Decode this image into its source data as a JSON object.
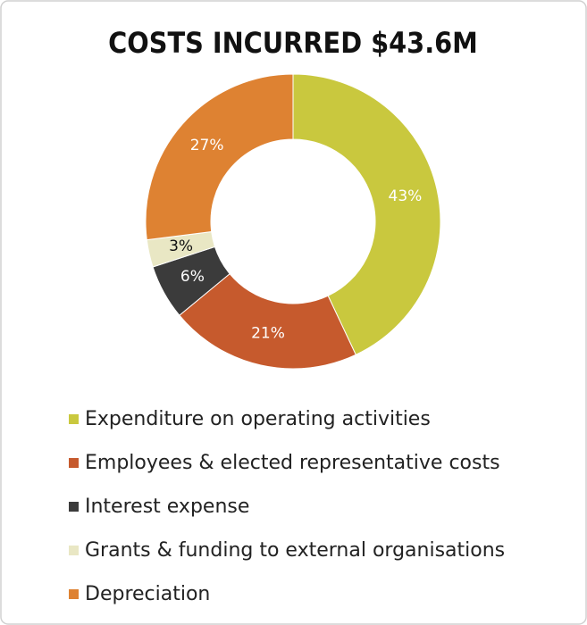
{
  "chart_data": {
    "type": "donut",
    "title": "COSTS INCURRED $43.6M",
    "categories": [
      "Expenditure on operating activities",
      "Employees & elected representative costs",
      "Interest expense",
      "Grants & funding to external organisations",
      "Depreciation"
    ],
    "values": [
      43,
      21,
      6,
      3,
      27
    ],
    "value_labels": [
      "43%",
      "21%",
      "6%",
      "3%",
      "27%"
    ],
    "colors": [
      "#c9c83e",
      "#c65a2d",
      "#3b3b3b",
      "#e9e7c4",
      "#de8232"
    ],
    "legend": "bottom"
  }
}
